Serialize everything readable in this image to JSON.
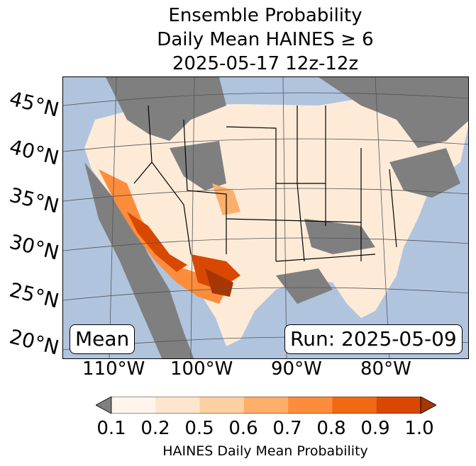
{
  "title": {
    "line1": "Ensemble Probability",
    "line2": "Daily Mean HAINES ≥ 6",
    "line3": "2025-05-17 12z-12z"
  },
  "map": {
    "lat_labels": [
      "45°N",
      "40°N",
      "35°N",
      "30°N",
      "25°N",
      "20°N"
    ],
    "lon_labels": [
      "110°W",
      "100°W",
      "90°W",
      "80°W"
    ],
    "left_box": "Mean",
    "right_box": "Run: 2025-05-09",
    "colors": {
      "ocean": "#b0c4de",
      "land_no_data": "#7f7f7f"
    }
  },
  "colorbar": {
    "ticks": [
      "0.1",
      "0.2",
      "0.5",
      "0.6",
      "0.7",
      "0.8",
      "0.9",
      "1.0"
    ],
    "label": "HAINES Daily Mean Probability",
    "colors": [
      "#fff5eb",
      "#fee6ce",
      "#fdd0a2",
      "#fdae6b",
      "#fd8d3c",
      "#f16913",
      "#d94801",
      "#a63603"
    ],
    "under_color": "#7f7f7f"
  }
}
